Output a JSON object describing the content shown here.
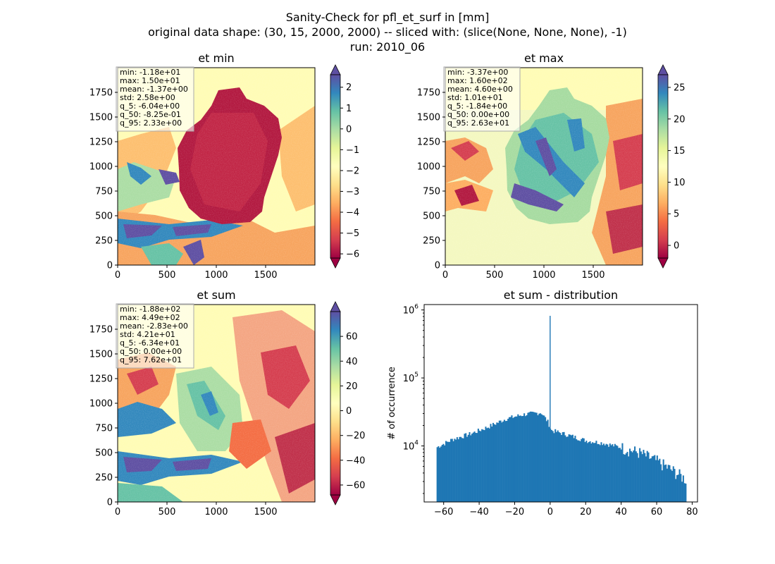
{
  "figure": {
    "title_lines": [
      "Sanity-Check for pfl_et_surf in [mm]",
      "original data shape: (30, 15, 2000, 2000) -- sliced with: (slice(None, None, None), -1)",
      "run: 2010_06"
    ]
  },
  "chart_data": [
    {
      "type": "heatmap",
      "title": "et min",
      "colormap": "Spectral",
      "xlim": [
        0,
        2000
      ],
      "ylim": [
        0,
        2000
      ],
      "xticks": [
        "0",
        "500",
        "1000",
        "1500"
      ],
      "yticks": [
        "0",
        "250",
        "500",
        "750",
        "1000",
        "1250",
        "1500",
        "1750"
      ],
      "colorbar": {
        "ticks": [
          "−6",
          "−5",
          "−4",
          "−3",
          "−2",
          "−1",
          "0",
          "1",
          "2"
        ],
        "range": [
          -6.2,
          2.6
        ],
        "extend": "both"
      },
      "stats": [
        "min: -1.18e+01",
        "max: 1.50e+01",
        "mean: -1.37e+00",
        "std: 2.58e+00",
        "q_5: -6.04e+00",
        "q_50: -8.25e-01",
        "q_95: 2.33e+00"
      ]
    },
    {
      "type": "heatmap",
      "title": "et max",
      "colormap": "Spectral",
      "xlim": [
        0,
        2000
      ],
      "ylim": [
        0,
        2000
      ],
      "xticks": [
        "0",
        "500",
        "1000",
        "1500"
      ],
      "yticks": [
        "0",
        "250",
        "500",
        "750",
        "1000",
        "1250",
        "1500",
        "1750"
      ],
      "colorbar": {
        "ticks": [
          "0",
          "5",
          "10",
          "15",
          "20",
          "25"
        ],
        "range": [
          -2.0,
          27.0
        ],
        "extend": "both"
      },
      "stats": [
        "min: -3.37e+00",
        "max: 1.60e+02",
        "mean: 4.60e+00",
        "std: 1.01e+01",
        "q_5: -1.84e+00",
        "q_50: 0.00e+00",
        "q_95: 2.63e+01"
      ]
    },
    {
      "type": "heatmap",
      "title": "et sum",
      "colormap": "Spectral",
      "xlim": [
        0,
        2000
      ],
      "ylim": [
        0,
        2000
      ],
      "xticks": [
        "0",
        "500",
        "1000",
        "1500"
      ],
      "yticks": [
        "0",
        "250",
        "500",
        "750",
        "1000",
        "1250",
        "1500",
        "1750"
      ],
      "colorbar": {
        "ticks": [
          "−60",
          "−40",
          "−20",
          "0",
          "20",
          "40",
          "60"
        ],
        "range": [
          -68,
          80
        ],
        "extend": "both"
      },
      "stats": [
        "min: -1.88e+02",
        "max: 4.49e+02",
        "mean: -2.83e+00",
        "std: 4.21e+01",
        "q_5: -6.34e+01",
        "q_50: 0.00e+00",
        "q_95: 7.62e+01"
      ]
    },
    {
      "type": "bar",
      "title": "et sum - distribution",
      "ylabel": "# of occurrence",
      "yscale": "log",
      "xlim": [
        -71,
        83
      ],
      "ylim": [
        1500,
        1200000
      ],
      "xticks": [
        {
          "value": -60,
          "label": "−60"
        },
        {
          "value": -40,
          "label": "−40"
        },
        {
          "value": -20,
          "label": "−20"
        },
        {
          "value": 0,
          "label": "0"
        },
        {
          "value": 20,
          "label": "20"
        },
        {
          "value": 40,
          "label": "40"
        },
        {
          "value": 60,
          "label": "60"
        },
        {
          "value": 80,
          "label": "80"
        }
      ],
      "yticks": [
        {
          "value": 10000,
          "base": "10",
          "exp": "4"
        },
        {
          "value": 100000,
          "base": "10",
          "exp": "5"
        },
        {
          "value": 1000000,
          "base": "10",
          "exp": "6"
        }
      ],
      "bin_range": [
        -64,
        76.5
      ],
      "bin_width": 0.7,
      "color": "#1f77b4",
      "profile": [
        {
          "x": -64,
          "y": 9500
        },
        {
          "x": -55,
          "y": 12500
        },
        {
          "x": -45,
          "y": 15000
        },
        {
          "x": -35,
          "y": 19000
        },
        {
          "x": -25,
          "y": 25000
        },
        {
          "x": -15,
          "y": 29000
        },
        {
          "x": -5,
          "y": 31000
        },
        {
          "x": -1,
          "y": 22000
        },
        {
          "x": 0.5,
          "y": 17000
        },
        {
          "x": 10,
          "y": 14500
        },
        {
          "x": 20,
          "y": 12000
        },
        {
          "x": 30,
          "y": 11000
        },
        {
          "x": 40,
          "y": 9500
        },
        {
          "x": 50,
          "y": 8000
        },
        {
          "x": 60,
          "y": 6000
        },
        {
          "x": 70,
          "y": 4200
        },
        {
          "x": 76.5,
          "y": 3200
        }
      ],
      "spike": {
        "x": -0.3,
        "y": 820000
      }
    }
  ]
}
